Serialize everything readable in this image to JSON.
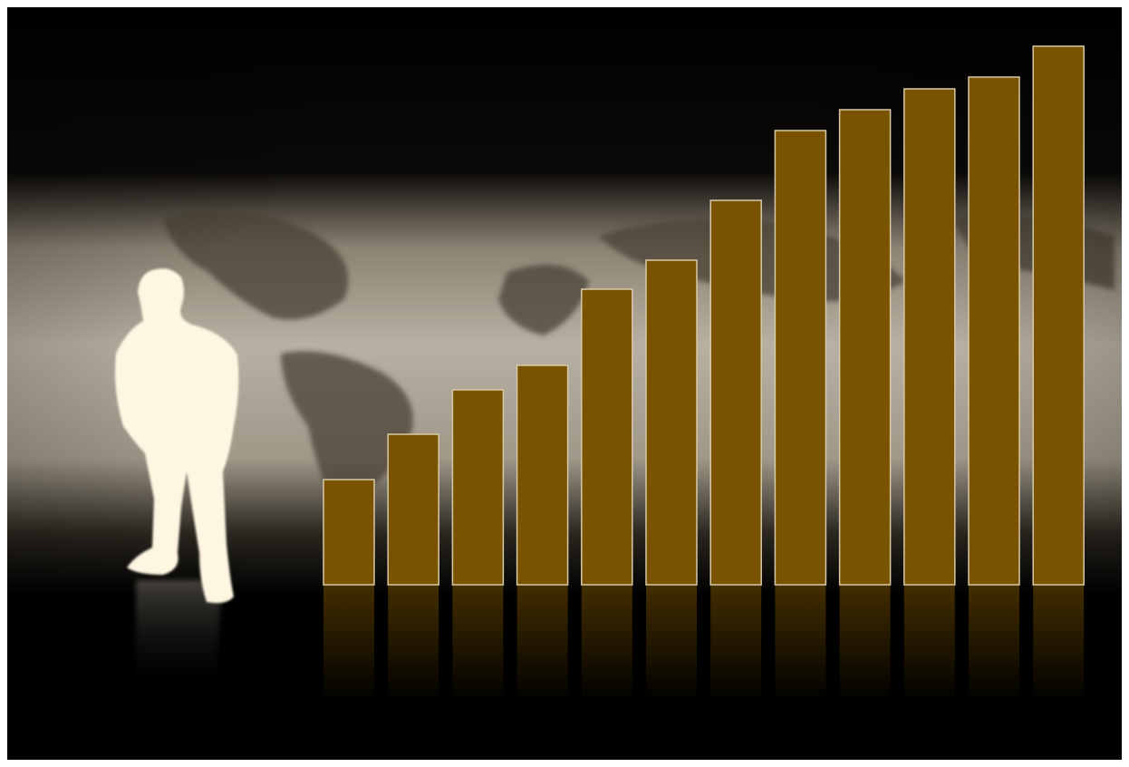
{
  "chart_data": {
    "type": "bar",
    "categories": [
      null,
      null,
      null,
      null,
      null,
      null,
      null,
      null,
      null,
      null,
      null,
      null
    ],
    "values": [
      116,
      166,
      215,
      242,
      326,
      358,
      424,
      501,
      524,
      547,
      560,
      594
    ],
    "color": "#7a5300",
    "ylim": [
      0,
      600
    ]
  }
}
